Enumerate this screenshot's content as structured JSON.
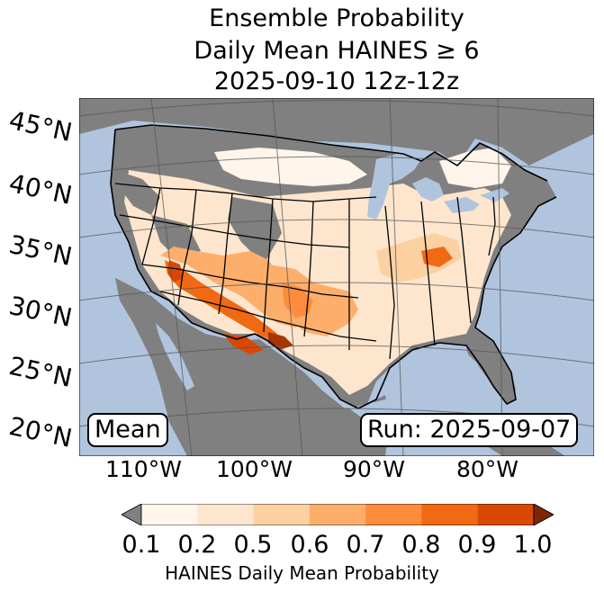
{
  "title": {
    "line1": "Ensemble Probability",
    "line2": "Daily Mean HAINES ≥ 6",
    "line3": "2025-09-10 12z-12z"
  },
  "map": {
    "lat_labels": [
      "45°N",
      "40°N",
      "35°N",
      "30°N",
      "25°N",
      "20°N"
    ],
    "lon_labels": [
      "110°W",
      "100°W",
      "90°W",
      "80°W"
    ],
    "mean_label": "Mean",
    "run_label": "Run: 2025-09-07"
  },
  "colorbar": {
    "ticks": [
      "0.1",
      "0.2",
      "0.5",
      "0.6",
      "0.7",
      "0.8",
      "0.9",
      "1.0"
    ],
    "label": "HAINES Daily Mean Probability",
    "colors": [
      "#fff5eb",
      "#fee6ce",
      "#fdd0a2",
      "#fdae6b",
      "#fd8d3c",
      "#f16913",
      "#d94801",
      "#a63603"
    ],
    "under_color": "#808080",
    "over_color": "#7f2704"
  },
  "colors": {
    "ocean": "#b0c4de",
    "land_no_data": "#808080"
  }
}
